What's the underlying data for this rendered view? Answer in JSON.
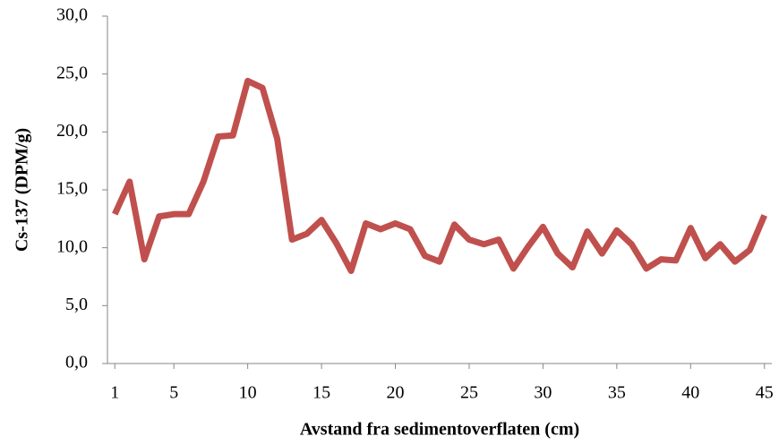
{
  "chart_data": {
    "type": "line",
    "x_label": "Avstand fra sedimentoverflaten (cm)",
    "y_label": "Cs-137 (DPM/g)",
    "x": [
      1,
      2,
      3,
      4,
      5,
      6,
      7,
      8,
      9,
      10,
      11,
      12,
      13,
      14,
      15,
      16,
      17,
      18,
      19,
      20,
      21,
      22,
      23,
      24,
      25,
      26,
      27,
      28,
      29,
      30,
      31,
      32,
      33,
      34,
      35,
      36,
      37,
      38,
      39,
      40,
      41,
      42,
      43,
      44,
      45
    ],
    "series": [
      {
        "color": "#c0504d",
        "values": [
          12.9,
          15.7,
          9.0,
          12.7,
          12.9,
          12.9,
          15.7,
          19.6,
          19.7,
          24.4,
          23.8,
          19.4,
          10.7,
          11.2,
          12.4,
          10.4,
          8.0,
          12.1,
          11.6,
          12.1,
          11.6,
          9.3,
          8.8,
          12.0,
          10.7,
          10.3,
          10.7,
          8.2,
          10.1,
          11.8,
          9.5,
          8.3,
          11.4,
          9.5,
          11.5,
          10.3,
          8.2,
          9.0,
          8.9,
          11.7,
          9.1,
          10.3,
          8.8,
          9.8,
          12.8
        ]
      }
    ],
    "xlim": [
      0.5,
      45.5
    ],
    "xticks": [
      1,
      5,
      10,
      15,
      20,
      25,
      30,
      35,
      40,
      45
    ],
    "ylim": [
      0,
      30
    ],
    "yticks": [
      {
        "value": 0,
        "label": "0,0"
      },
      {
        "value": 5,
        "label": "5,0"
      },
      {
        "value": 10,
        "label": "10,0"
      },
      {
        "value": 15,
        "label": "15,0"
      },
      {
        "value": 20,
        "label": "20,0"
      },
      {
        "value": 25,
        "label": "25,0"
      },
      {
        "value": 30,
        "label": "30,0"
      }
    ],
    "grid": false
  }
}
